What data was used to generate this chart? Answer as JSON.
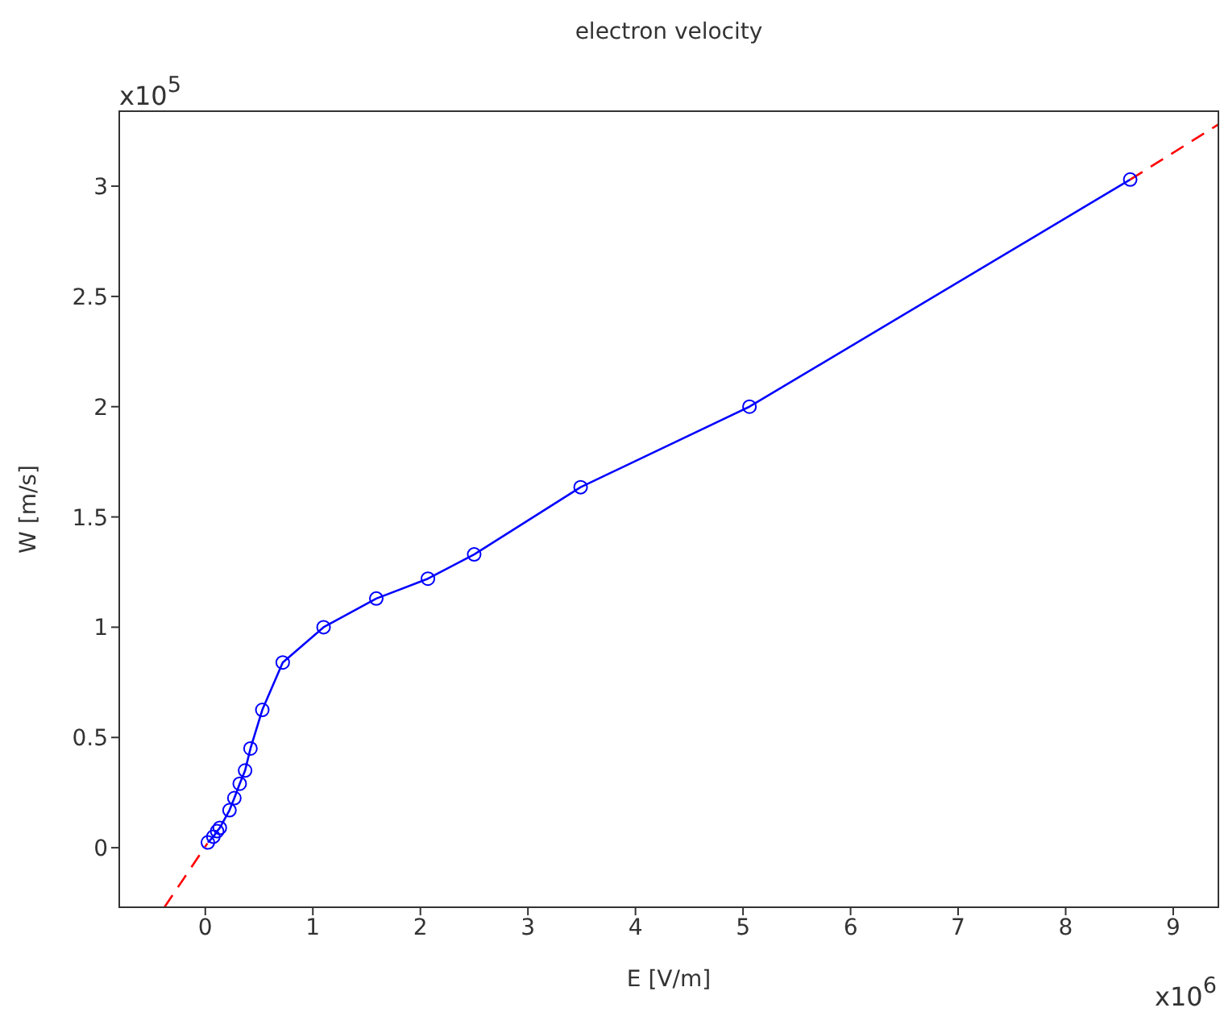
{
  "chart_data": {
    "type": "line",
    "title": "electron velocity",
    "xlabel": "E [V/m]",
    "ylabel": "W [m/s]",
    "annotations": [
      "x10$^{5}$",
      "x10$^{6}$"
    ],
    "xlim": [
      -0.8,
      9.42
    ],
    "xticks": [
      0,
      1,
      2,
      3,
      4,
      5,
      6,
      7,
      8,
      9
    ],
    "ylim": [
      -0.27,
      3.34
    ],
    "yticks": [
      0,
      0.5,
      1,
      1.5,
      2,
      2.5,
      3
    ],
    "series": [
      {
        "color": "#ff0000",
        "line_style": "dashed",
        "marker": "none",
        "x": [
          -0.38,
          0.02,
          5,
          8.6,
          9.42
        ],
        "values": [
          -0.27,
          0.02,
          null,
          3.03,
          3.28
        ]
      },
      {
        "color": "#0000ff",
        "line_style": "solid",
        "marker": "circle",
        "x": [
          0.024,
          0.075,
          0.11,
          0.135,
          0.225,
          0.27,
          0.32,
          0.37,
          0.42,
          0.53,
          0.72,
          1.1,
          1.59,
          2.07,
          2.5,
          3.49,
          5.06,
          8.6
        ],
        "values": [
          0.024,
          0.05,
          0.075,
          0.09,
          0.17,
          0.225,
          0.29,
          0.35,
          0.45,
          0.625,
          0.84,
          1.0,
          1.13,
          1.22,
          1.33,
          1.635,
          2.0,
          3.03
        ]
      }
    ]
  }
}
